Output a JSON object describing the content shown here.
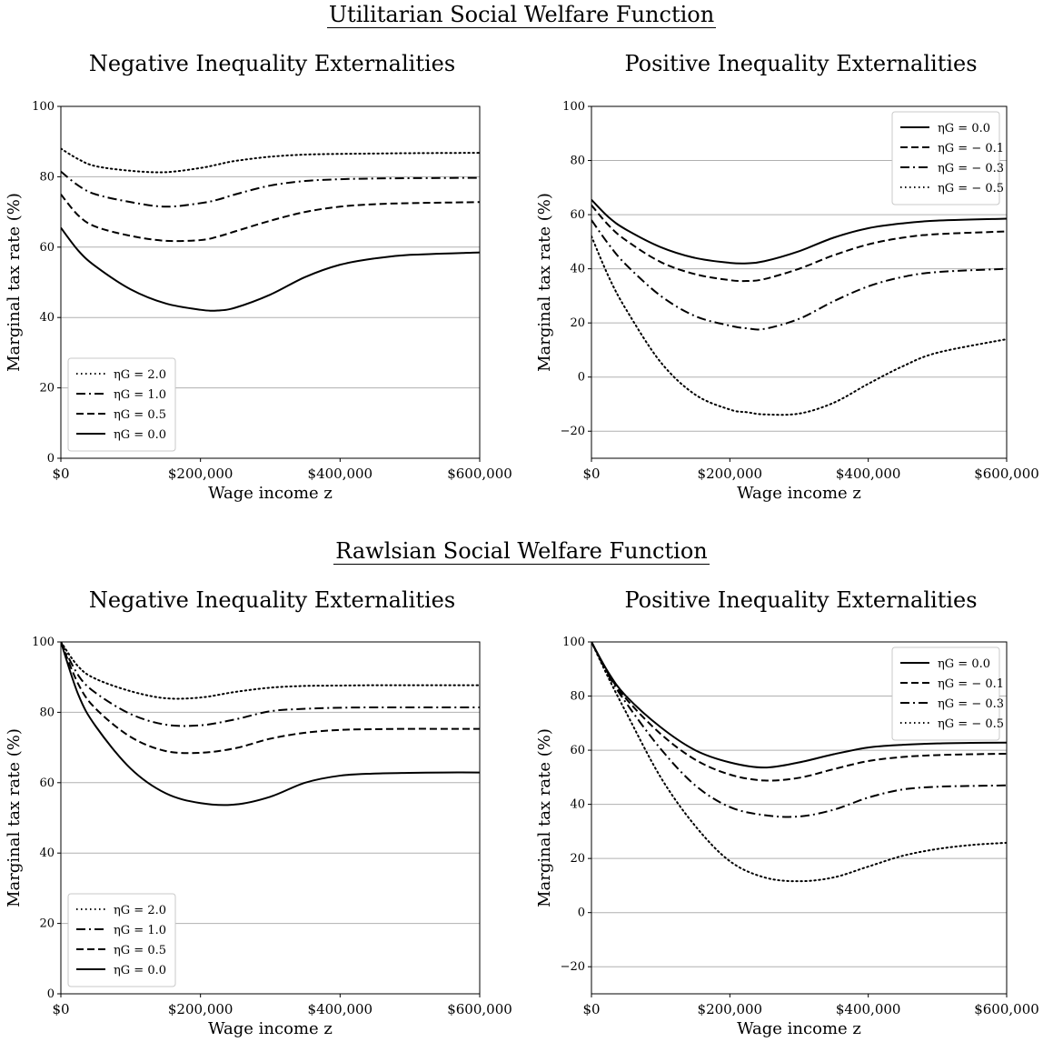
{
  "figure": {
    "row_titles": [
      "Utilitarian Social Welfare Function",
      "Rawlsian Social Welfare Function"
    ]
  },
  "chart_data": [
    {
      "type": "line",
      "title": "Negative Inequality Externalities",
      "xlabel": "Wage income z",
      "ylabel": "Marginal tax rate (%)",
      "xlim": [
        0,
        600000
      ],
      "ylim": [
        0,
        100
      ],
      "xticks": [
        0,
        200000,
        400000,
        600000
      ],
      "xtick_labels": [
        "$0",
        "$200,000",
        "$400,000",
        "$600,000"
      ],
      "yticks": [
        0,
        20,
        40,
        60,
        80,
        100
      ],
      "ytick_labels": [
        "0",
        "20",
        "40",
        "60",
        "80",
        "100"
      ],
      "grid": "horizontal",
      "legend_position": "lower-left",
      "x": [
        0,
        25000,
        50000,
        100000,
        150000,
        200000,
        225000,
        250000,
        300000,
        350000,
        400000,
        450000,
        500000,
        600000
      ],
      "series": [
        {
          "name": "ηG = 2.0",
          "style": "dotted",
          "values": [
            88,
            85,
            83,
            81.7,
            81.3,
            82.5,
            83.5,
            84.5,
            85.7,
            86.3,
            86.5,
            86.6,
            86.7,
            86.8
          ]
        },
        {
          "name": "ηG = 1.0",
          "style": "dashdot",
          "values": [
            81.5,
            77.5,
            75,
            72.8,
            71.5,
            72.5,
            73.5,
            75,
            77.5,
            78.8,
            79.3,
            79.5,
            79.6,
            79.7
          ]
        },
        {
          "name": "ηG = 0.5",
          "style": "dashed",
          "values": [
            75,
            69,
            65.8,
            63.2,
            61.8,
            62,
            63,
            64.5,
            67.5,
            70,
            71.5,
            72.2,
            72.5,
            72.8
          ]
        },
        {
          "name": "ηG = 0.0",
          "style": "solid",
          "values": [
            65.5,
            59,
            54.5,
            48,
            44,
            42.2,
            42,
            42.8,
            46.5,
            51.5,
            55,
            56.8,
            57.8,
            58.5
          ]
        }
      ]
    },
    {
      "type": "line",
      "title": "Positive Inequality Externalities",
      "xlabel": "Wage income z",
      "ylabel": "Marginal tax rate (%)",
      "xlim": [
        0,
        600000
      ],
      "ylim": [
        -30,
        100
      ],
      "xticks": [
        0,
        200000,
        400000,
        600000
      ],
      "xtick_labels": [
        "$0",
        "$200,000",
        "$400,000",
        "$600,000"
      ],
      "yticks": [
        -20,
        0,
        20,
        40,
        60,
        80,
        100
      ],
      "ytick_labels": [
        "−20",
        "0",
        "20",
        "40",
        "60",
        "80",
        "100"
      ],
      "grid": "horizontal",
      "legend_position": "top-right",
      "x": [
        0,
        25000,
        50000,
        100000,
        150000,
        200000,
        225000,
        250000,
        300000,
        350000,
        400000,
        450000,
        500000,
        600000
      ],
      "series": [
        {
          "name": "ηG = 0.0",
          "style": "solid",
          "values": [
            65.5,
            59,
            54.5,
            48,
            44,
            42.2,
            42,
            42.8,
            46.5,
            51.5,
            55,
            56.8,
            57.8,
            58.5
          ]
        },
        {
          "name": "ηG = − 0.1",
          "style": "dashed",
          "values": [
            63.5,
            56,
            50.5,
            42.5,
            38,
            35.8,
            35.5,
            36.2,
            40,
            45,
            49,
            51.5,
            52.8,
            53.8
          ]
        },
        {
          "name": "ηG = − 0.3",
          "style": "dashdot",
          "values": [
            58,
            49,
            41.5,
            30,
            22.5,
            19,
            18,
            17.8,
            21.5,
            28,
            33.5,
            37,
            38.8,
            40
          ]
        },
        {
          "name": "ηG = − 0.5",
          "style": "dotted",
          "values": [
            52,
            37,
            25,
            5.5,
            -6.5,
            -12,
            -13,
            -13.8,
            -13.5,
            -9.5,
            -2.5,
            4,
            9,
            14
          ]
        }
      ]
    },
    {
      "type": "line",
      "title": "Negative Inequality Externalities",
      "xlabel": "Wage income z",
      "ylabel": "Marginal tax rate (%)",
      "xlim": [
        0,
        600000
      ],
      "ylim": [
        0,
        100
      ],
      "xticks": [
        0,
        200000,
        400000,
        600000
      ],
      "xtick_labels": [
        "$0",
        "$200,000",
        "$400,000",
        "$600,000"
      ],
      "yticks": [
        0,
        20,
        40,
        60,
        80,
        100
      ],
      "ytick_labels": [
        "0",
        "20",
        "40",
        "60",
        "80",
        "100"
      ],
      "grid": "horizontal",
      "legend_position": "lower-left",
      "x": [
        0,
        25000,
        50000,
        100000,
        150000,
        200000,
        250000,
        300000,
        350000,
        400000,
        450000,
        500000,
        550000,
        600000
      ],
      "series": [
        {
          "name": "ηG = 2.0",
          "style": "dotted",
          "values": [
            100,
            93,
            89.5,
            86,
            84,
            84.2,
            85.8,
            87,
            87.5,
            87.6,
            87.7,
            87.7,
            87.7,
            87.7
          ]
        },
        {
          "name": "ηG = 1.0",
          "style": "dashdot",
          "values": [
            100,
            90.5,
            85.5,
            79.5,
            76.5,
            76.3,
            78,
            80.3,
            81,
            81.3,
            81.4,
            81.4,
            81.4,
            81.4
          ]
        },
        {
          "name": "ηG = 0.5",
          "style": "dashed",
          "values": [
            100,
            88,
            81,
            73,
            69,
            68.5,
            69.8,
            72.5,
            74.2,
            75,
            75.2,
            75.3,
            75.3,
            75.3
          ]
        },
        {
          "name": "ηG = 0.0",
          "style": "solid",
          "values": [
            100,
            85,
            76,
            64,
            57,
            54.2,
            53.8,
            56,
            60,
            62,
            62.6,
            62.8,
            62.9,
            62.9
          ]
        }
      ]
    },
    {
      "type": "line",
      "title": "Positive Inequality Externalities",
      "xlabel": "Wage income z",
      "ylabel": "Marginal tax rate (%)",
      "xlim": [
        0,
        600000
      ],
      "ylim": [
        -30,
        100
      ],
      "xticks": [
        0,
        200000,
        400000,
        600000
      ],
      "xtick_labels": [
        "$0",
        "$200,000",
        "$400,000",
        "$600,000"
      ],
      "yticks": [
        -20,
        0,
        20,
        40,
        60,
        80,
        100
      ],
      "ytick_labels": [
        "−20",
        "0",
        "20",
        "40",
        "60",
        "80",
        "100"
      ],
      "grid": "horizontal",
      "legend_position": "top-right",
      "x": [
        0,
        25000,
        50000,
        100000,
        150000,
        200000,
        250000,
        300000,
        350000,
        400000,
        450000,
        500000,
        550000,
        600000
      ],
      "series": [
        {
          "name": "ηG = 0.0",
          "style": "solid",
          "values": [
            100,
            88.5,
            80,
            68.5,
            60,
            55.5,
            53.6,
            55.5,
            58.5,
            61,
            62,
            62.5,
            62.7,
            62.8
          ]
        },
        {
          "name": "ηG = − 0.1",
          "style": "dashed",
          "values": [
            100,
            88,
            79,
            66,
            56.5,
            51,
            48.8,
            49.8,
            53,
            56,
            57.5,
            58.2,
            58.5,
            58.7
          ]
        },
        {
          "name": "ηG = − 0.3",
          "style": "dashdot",
          "values": [
            100,
            87.5,
            77.5,
            60.5,
            47,
            39,
            36,
            35.5,
            38,
            42.5,
            45.5,
            46.5,
            46.8,
            47
          ]
        },
        {
          "name": "ηG = − 0.5",
          "style": "dotted",
          "values": [
            100,
            86.5,
            74,
            50,
            32,
            19,
            13,
            11.6,
            13,
            17,
            21,
            23.5,
            25,
            25.8
          ]
        }
      ]
    }
  ]
}
